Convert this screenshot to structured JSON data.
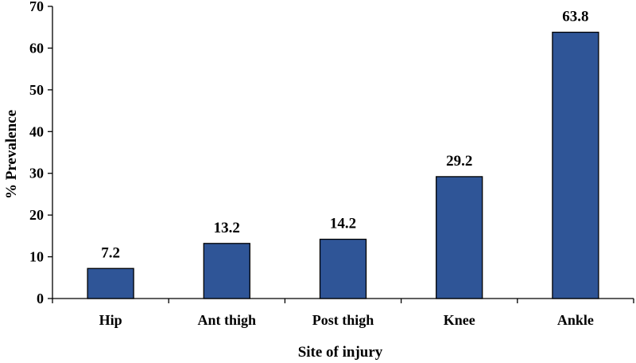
{
  "chart_data": {
    "type": "bar",
    "categories": [
      "Hip",
      "Ant thigh",
      "Post thigh",
      "Knee",
      "Ankle"
    ],
    "values": [
      7.2,
      13.2,
      14.2,
      29.2,
      63.8
    ],
    "data_labels": [
      "7.2",
      "13.2",
      "14.2",
      "29.2",
      "63.8"
    ],
    "title": "",
    "xlabel": "Site of injury",
    "ylabel": "% Prevalence",
    "ylim": [
      0,
      70
    ],
    "yticks": [
      0,
      10,
      20,
      30,
      40,
      50,
      60,
      70
    ],
    "grid": false,
    "legend": "none",
    "bar_color": "#2f5597",
    "bar_edge_color": "#000000"
  }
}
